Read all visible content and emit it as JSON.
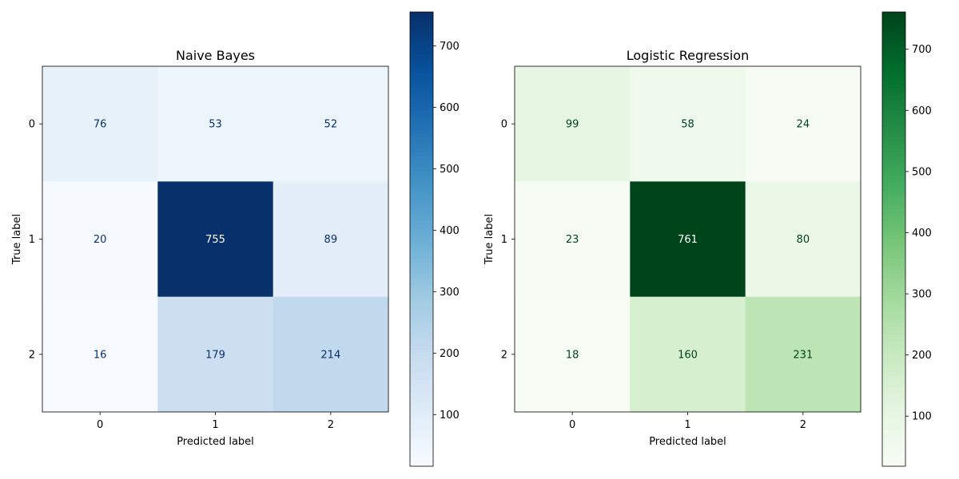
{
  "chart_data": [
    {
      "type": "heatmap",
      "title": "Naive Bayes",
      "xlabel": "Predicted label",
      "ylabel": "True label",
      "x_ticks": [
        "0",
        "1",
        "2"
      ],
      "y_ticks": [
        "0",
        "1",
        "2"
      ],
      "values": [
        [
          76,
          53,
          52
        ],
        [
          20,
          755,
          89
        ],
        [
          16,
          179,
          214
        ]
      ],
      "colormap": "Blues",
      "color_min": 16,
      "color_max": 755,
      "colorbar_ticks": [
        100,
        200,
        300,
        400,
        500,
        600,
        700
      ]
    },
    {
      "type": "heatmap",
      "title": "Logistic Regression",
      "xlabel": "Predicted label",
      "ylabel": "True label",
      "x_ticks": [
        "0",
        "1",
        "2"
      ],
      "y_ticks": [
        "0",
        "1",
        "2"
      ],
      "values": [
        [
          99,
          58,
          24
        ],
        [
          23,
          761,
          80
        ],
        [
          18,
          160,
          231
        ]
      ],
      "colormap": "Greens",
      "color_min": 18,
      "color_max": 761,
      "colorbar_ticks": [
        100,
        200,
        300,
        400,
        500,
        600,
        700
      ]
    }
  ]
}
